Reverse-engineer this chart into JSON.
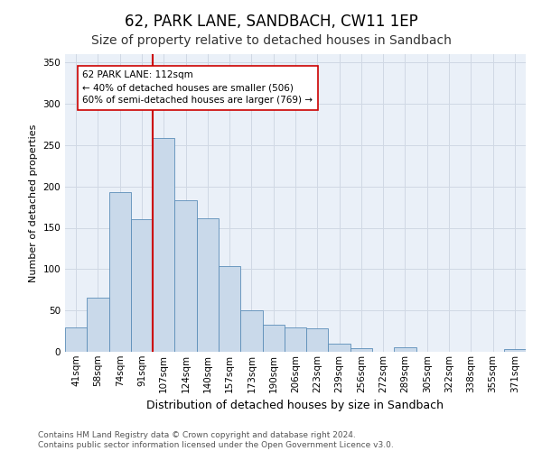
{
  "title": "62, PARK LANE, SANDBACH, CW11 1EP",
  "subtitle": "Size of property relative to detached houses in Sandbach",
  "xlabel": "Distribution of detached houses by size in Sandbach",
  "ylabel": "Number of detached properties",
  "categories": [
    "41sqm",
    "58sqm",
    "74sqm",
    "91sqm",
    "107sqm",
    "124sqm",
    "140sqm",
    "157sqm",
    "173sqm",
    "190sqm",
    "206sqm",
    "223sqm",
    "239sqm",
    "256sqm",
    "272sqm",
    "289sqm",
    "305sqm",
    "322sqm",
    "338sqm",
    "355sqm",
    "371sqm"
  ],
  "values": [
    30,
    65,
    193,
    160,
    258,
    183,
    162,
    104,
    50,
    33,
    30,
    28,
    10,
    4,
    0,
    6,
    0,
    0,
    0,
    0,
    3
  ],
  "bar_color": "#c9d9ea",
  "bar_edge_color": "#5b8db8",
  "vline_x_index": 4,
  "vline_color": "#cc0000",
  "annotation_text": "62 PARK LANE: 112sqm\n← 40% of detached houses are smaller (506)\n60% of semi-detached houses are larger (769) →",
  "annotation_box_color": "#ffffff",
  "annotation_box_edge": "#cc0000",
  "ylim": [
    0,
    360
  ],
  "yticks": [
    0,
    50,
    100,
    150,
    200,
    250,
    300,
    350
  ],
  "grid_color": "#d0d8e4",
  "bg_color": "#eaf0f8",
  "footer": "Contains HM Land Registry data © Crown copyright and database right 2024.\nContains public sector information licensed under the Open Government Licence v3.0.",
  "title_fontsize": 12,
  "subtitle_fontsize": 10,
  "xlabel_fontsize": 9,
  "ylabel_fontsize": 8,
  "tick_fontsize": 7.5,
  "footer_fontsize": 6.5,
  "annotation_fontsize": 7.5
}
